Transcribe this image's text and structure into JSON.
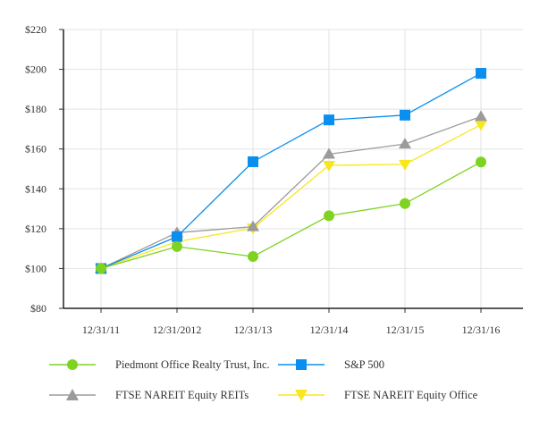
{
  "chart_data": {
    "type": "line",
    "title": "",
    "xlabel": "",
    "ylabel": "",
    "categories": [
      "12/31/11",
      "12/31/2012",
      "12/31/13",
      "12/31/14",
      "12/31/15",
      "12/31/16"
    ],
    "yticks": [
      "$80",
      "$100",
      "$120",
      "$140",
      "$160",
      "$180",
      "$200",
      "$220"
    ],
    "ylim": [
      80,
      220
    ],
    "grid": true,
    "legend_position": "bottom",
    "series": [
      {
        "name": "Piedmont Office Realty Trust, Inc.",
        "color": "#7ED321",
        "marker": "circle",
        "values": [
          100,
          111,
          106,
          126.5,
          132.6,
          153.5
        ]
      },
      {
        "name": "S&P 500",
        "color": "#0A8FF0",
        "marker": "square",
        "values": [
          100,
          116,
          153.6,
          174.6,
          177,
          198
        ]
      },
      {
        "name": "FTSE NAREIT Equity REITs",
        "color": "#9B9B9B",
        "marker": "triangle-up",
        "values": [
          100,
          118,
          121,
          157.4,
          162.5,
          176.3
        ]
      },
      {
        "name": "FTSE NAREIT Equity Office",
        "color": "#F8E71C",
        "marker": "triangle-down",
        "values": [
          100,
          113.5,
          120.3,
          151.8,
          152.3,
          172.2
        ]
      }
    ]
  }
}
